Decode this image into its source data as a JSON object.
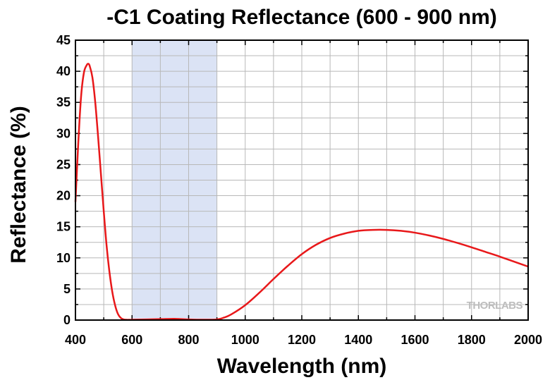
{
  "chart_data": {
    "type": "line",
    "title": "-C1 Coating Reflectance (600 - 900 nm)",
    "xlabel": "Wavelength (nm)",
    "ylabel": "Reflectance (%)",
    "xlim": [
      400,
      2000
    ],
    "ylim": [
      0,
      45
    ],
    "xticks": [
      400,
      600,
      800,
      1000,
      1200,
      1400,
      1600,
      1800,
      2000
    ],
    "yticks": [
      0,
      5,
      10,
      15,
      20,
      25,
      30,
      35,
      40,
      45
    ],
    "grid": true,
    "shaded_region": {
      "x": [
        600,
        900
      ],
      "color": "#dbe3f5"
    },
    "line_color": "#e8181a",
    "watermark": "THORLABS",
    "series": [
      {
        "x": [
          400,
          410,
          420,
          430,
          440,
          445,
          450,
          460,
          470,
          480,
          490,
          500,
          510,
          520,
          530,
          540,
          550,
          560,
          570,
          580,
          590,
          600,
          650,
          700,
          750,
          800,
          850,
          900,
          925,
          950,
          1000,
          1050,
          1100,
          1150,
          1200,
          1250,
          1300,
          1350,
          1400,
          1450,
          1500,
          1550,
          1600,
          1650,
          1700,
          1750,
          1800,
          1850,
          1900,
          1950,
          2000
        ],
        "values": [
          19.0,
          28.5,
          36.0,
          39.8,
          41.0,
          41.2,
          40.9,
          39.0,
          35.0,
          29.5,
          23.5,
          17.5,
          12.0,
          7.8,
          4.6,
          2.4,
          1.0,
          0.35,
          0.1,
          0.05,
          0.05,
          0.05,
          0.1,
          0.15,
          0.2,
          0.1,
          0.05,
          0.1,
          0.4,
          0.9,
          2.4,
          4.4,
          6.6,
          8.7,
          10.6,
          12.1,
          13.2,
          13.9,
          14.35,
          14.5,
          14.5,
          14.35,
          14.05,
          13.6,
          13.05,
          12.4,
          11.7,
          10.95,
          10.2,
          9.4,
          8.6
        ]
      }
    ]
  }
}
